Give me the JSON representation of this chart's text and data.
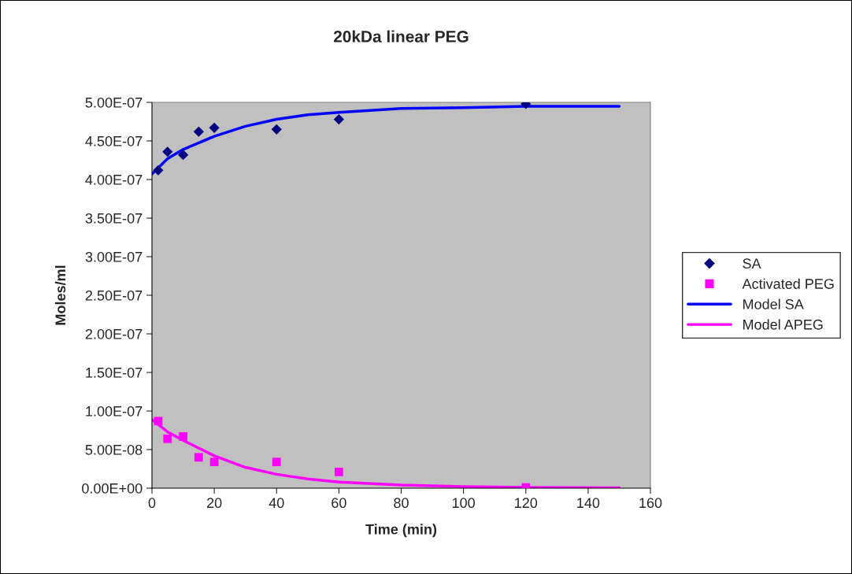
{
  "chart_data": {
    "type": "scatter",
    "title": "20kDa linear PEG",
    "xlabel": "Time (min)",
    "ylabel": "Moles/ml",
    "xlim": [
      0,
      160
    ],
    "xticks": [
      0,
      20,
      40,
      60,
      80,
      100,
      120,
      140,
      160
    ],
    "ylim": [
      0,
      5e-07
    ],
    "yticks": [
      {
        "value": 0,
        "label": "0.00E+00"
      },
      {
        "value": 5e-08,
        "label": "5.00E-08"
      },
      {
        "value": 1e-07,
        "label": "1.00E-07"
      },
      {
        "value": 1.5e-07,
        "label": "1.50E-07"
      },
      {
        "value": 2e-07,
        "label": "2.00E-07"
      },
      {
        "value": 2.5e-07,
        "label": "2.50E-07"
      },
      {
        "value": 3e-07,
        "label": "3.00E-07"
      },
      {
        "value": 3.5e-07,
        "label": "3.50E-07"
      },
      {
        "value": 4e-07,
        "label": "4.00E-07"
      },
      {
        "value": 4.5e-07,
        "label": "4.50E-07"
      },
      {
        "value": 5e-07,
        "label": "5.00E-07"
      }
    ],
    "grid": false,
    "legend": "right",
    "series": [
      {
        "name": "SA",
        "marker": "diamond",
        "color": "#000080",
        "x": [
          2,
          5,
          10,
          15,
          20,
          40,
          60,
          120
        ],
        "values": [
          4.12e-07,
          4.36e-07,
          4.32e-07,
          4.62e-07,
          4.67e-07,
          4.65e-07,
          4.78e-07,
          4.98e-07
        ]
      },
      {
        "name": "Activated PEG",
        "marker": "square",
        "color": "#ff00ff",
        "x": [
          2,
          5,
          10,
          15,
          20,
          40,
          60,
          120
        ],
        "values": [
          8.7e-08,
          6.4e-08,
          6.7e-08,
          4e-08,
          3.4e-08,
          3.4e-08,
          2.1e-08,
          1e-09
        ]
      },
      {
        "name": "Model SA",
        "type": "line",
        "marker": "none",
        "line_style": "solid",
        "color": "#0000ff",
        "x": [
          0,
          5,
          10,
          20,
          30,
          40,
          50,
          60,
          80,
          100,
          120,
          150
        ],
        "values": [
          4.07e-07,
          4.27e-07,
          4.39e-07,
          4.56e-07,
          4.69e-07,
          4.78e-07,
          4.84e-07,
          4.87e-07,
          4.92e-07,
          4.93e-07,
          4.95e-07,
          4.95e-07
        ]
      },
      {
        "name": "Model APEG",
        "type": "line",
        "marker": "none",
        "line_style": "solid",
        "color": "#ff00ff",
        "x": [
          0,
          5,
          10,
          20,
          30,
          40,
          50,
          60,
          80,
          100,
          120,
          150
        ],
        "values": [
          8.9e-08,
          7.3e-08,
          6.2e-08,
          4.2e-08,
          2.7e-08,
          1.8e-08,
          1.2e-08,
          8e-09,
          4e-09,
          2e-09,
          1e-09,
          5e-10
        ]
      }
    ]
  }
}
